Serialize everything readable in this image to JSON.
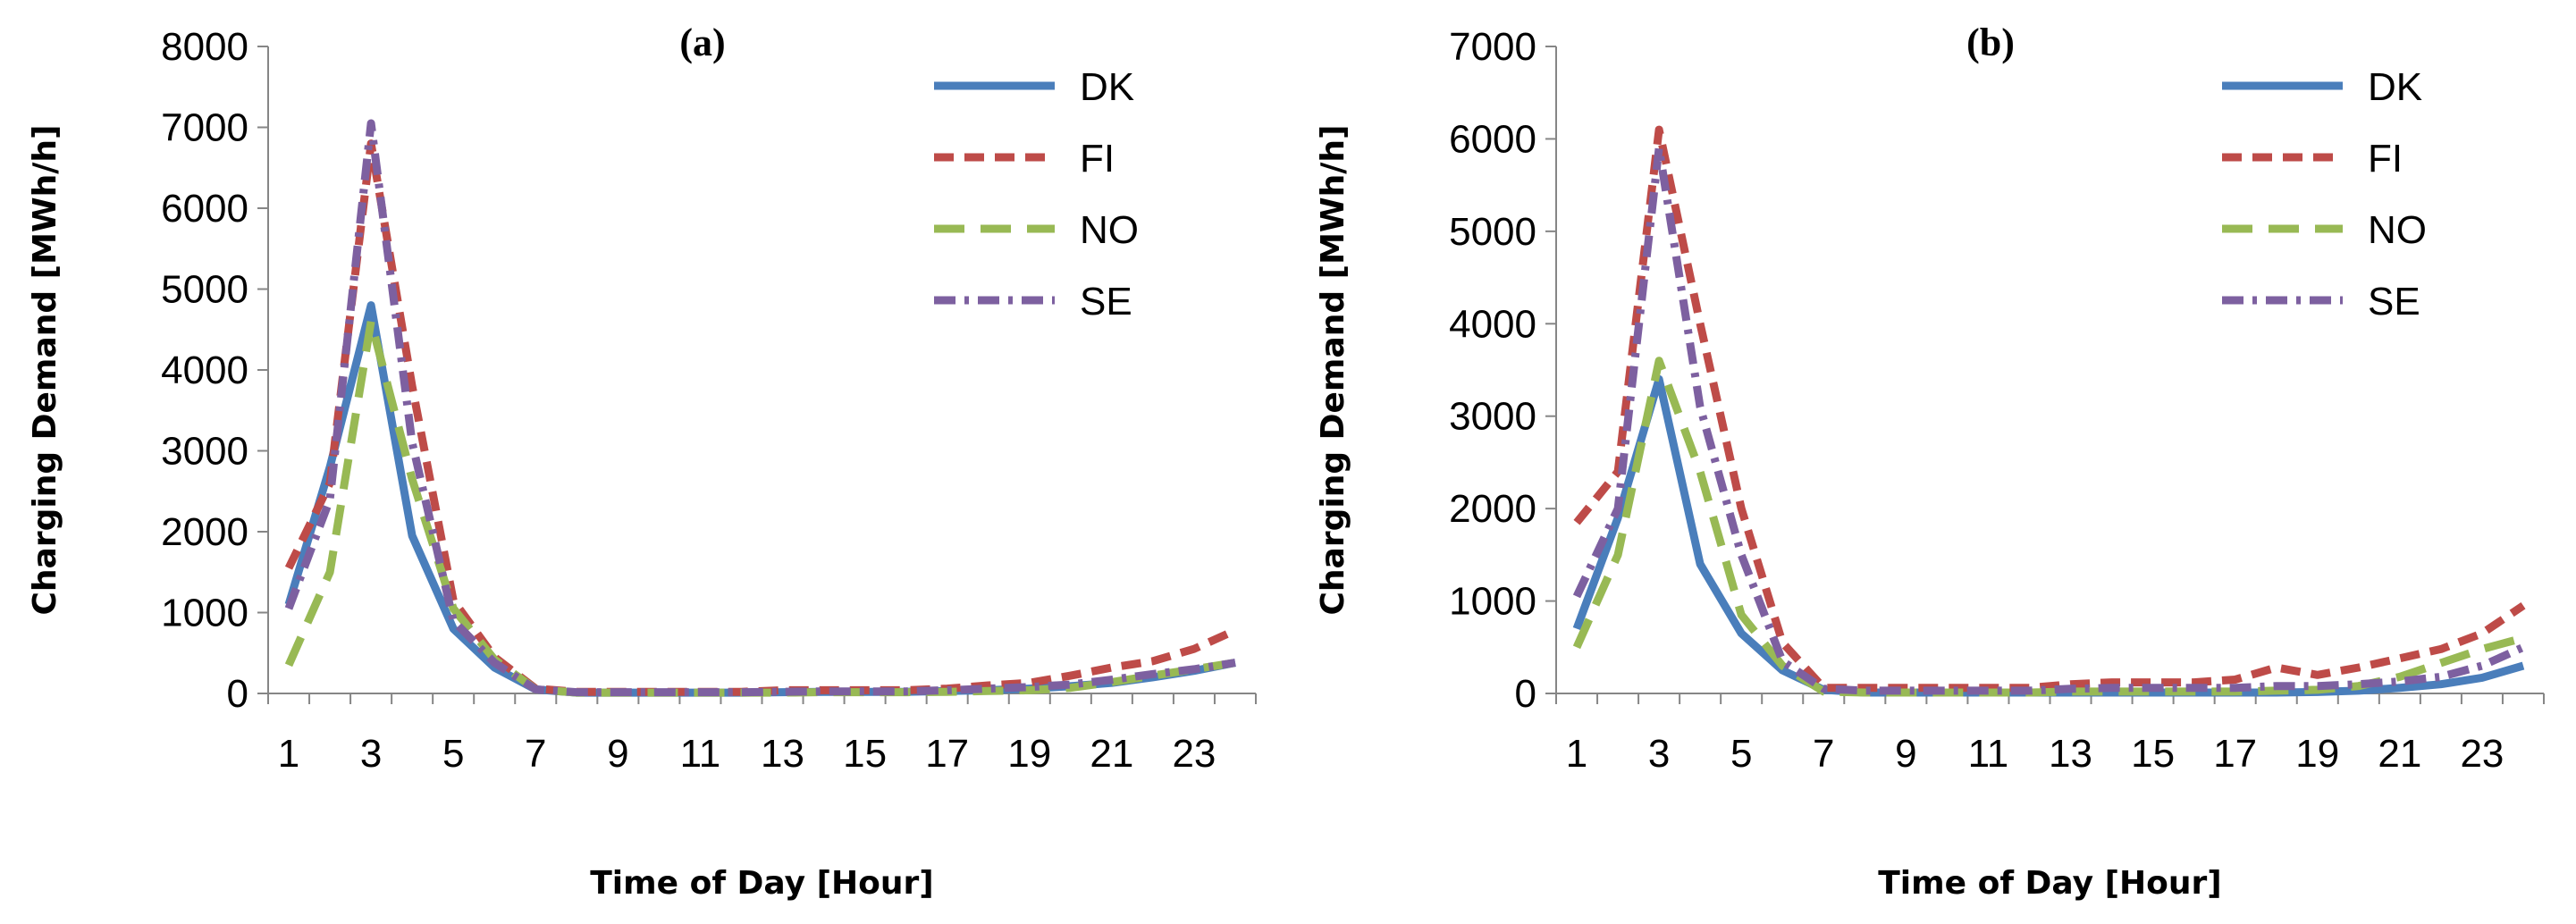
{
  "chart_data": [
    {
      "type": "line",
      "title": "(a)",
      "xlabel": "Time of Day [Hour]",
      "ylabel": "Charging Demand [MWh/h]",
      "ylim": [
        0,
        8000
      ],
      "yticks": [
        0,
        1000,
        2000,
        3000,
        4000,
        5000,
        6000,
        7000,
        8000
      ],
      "ytick_labels": [
        "0",
        "1000",
        "2000",
        "3000",
        "4000",
        "5000",
        "6000",
        "7000",
        "8000"
      ],
      "xlim": [
        1,
        24
      ],
      "xtick_labels": [
        "1",
        "3",
        "5",
        "7",
        "9",
        "11",
        "13",
        "15",
        "17",
        "19",
        "21",
        "23"
      ],
      "x": [
        1,
        2,
        3,
        4,
        5,
        6,
        7,
        8,
        9,
        10,
        11,
        12,
        13,
        14,
        15,
        16,
        17,
        18,
        19,
        20,
        21,
        22,
        23,
        24
      ],
      "legend_position": "top-right",
      "series": [
        {
          "name": "DK",
          "color": "#4a7ebb",
          "dash": "solid",
          "values": [
            1100,
            2800,
            4800,
            1950,
            800,
            320,
            50,
            10,
            10,
            10,
            10,
            10,
            15,
            20,
            20,
            20,
            30,
            40,
            60,
            90,
            130,
            200,
            280,
            380
          ]
        },
        {
          "name": "FI",
          "color": "#be4b48",
          "dash": "dash",
          "values": [
            1550,
            2600,
            6800,
            3800,
            1150,
            450,
            60,
            20,
            20,
            20,
            20,
            20,
            40,
            40,
            40,
            40,
            60,
            100,
            130,
            220,
            320,
            400,
            550,
            780
          ]
        },
        {
          "name": "NO",
          "color": "#98b954",
          "dash": "longdash",
          "values": [
            350,
            1500,
            4600,
            2650,
            1050,
            420,
            50,
            10,
            10,
            10,
            10,
            10,
            10,
            15,
            15,
            15,
            20,
            30,
            40,
            70,
            140,
            220,
            300,
            380
          ]
        },
        {
          "name": "SE",
          "color": "#7d60a0",
          "dash": "dashdot",
          "values": [
            1050,
            2400,
            7050,
            3100,
            900,
            380,
            50,
            15,
            15,
            15,
            15,
            15,
            20,
            25,
            25,
            25,
            40,
            60,
            80,
            110,
            170,
            240,
            300,
            380
          ]
        }
      ]
    },
    {
      "type": "line",
      "title": "(b)",
      "xlabel": "Time of Day [Hour]",
      "ylabel": "Charging Demand [MWh/h]",
      "ylim": [
        0,
        7000
      ],
      "yticks": [
        0,
        1000,
        2000,
        3000,
        4000,
        5000,
        6000,
        7000
      ],
      "ytick_labels": [
        "0",
        "1000",
        "2000",
        "3000",
        "4000",
        "5000",
        "6000",
        "7000"
      ],
      "xlim": [
        1,
        24
      ],
      "xtick_labels": [
        "1",
        "3",
        "5",
        "7",
        "9",
        "11",
        "13",
        "15",
        "17",
        "19",
        "21",
        "23"
      ],
      "x": [
        1,
        2,
        3,
        4,
        5,
        6,
        7,
        8,
        9,
        10,
        11,
        12,
        13,
        14,
        15,
        16,
        17,
        18,
        19,
        20,
        21,
        22,
        23,
        24
      ],
      "legend_position": "top-right",
      "series": [
        {
          "name": "DK",
          "color": "#4a7ebb",
          "dash": "solid",
          "values": [
            700,
            1900,
            3400,
            1400,
            650,
            250,
            40,
            10,
            10,
            10,
            10,
            10,
            10,
            10,
            10,
            10,
            10,
            10,
            15,
            30,
            60,
            100,
            170,
            300
          ]
        },
        {
          "name": "FI",
          "color": "#be4b48",
          "dash": "dash",
          "values": [
            1850,
            2400,
            6100,
            4000,
            2000,
            550,
            60,
            60,
            60,
            60,
            60,
            60,
            100,
            120,
            120,
            120,
            150,
            280,
            200,
            280,
            380,
            480,
            650,
            950
          ]
        },
        {
          "name": "NO",
          "color": "#98b954",
          "dash": "longdash",
          "values": [
            500,
            1500,
            3600,
            2400,
            850,
            300,
            20,
            10,
            10,
            10,
            10,
            10,
            20,
            20,
            20,
            20,
            20,
            30,
            40,
            80,
            180,
            330,
            480,
            600
          ]
        },
        {
          "name": "SE",
          "color": "#7d60a0",
          "dash": "dashdot",
          "values": [
            1050,
            2000,
            5900,
            3100,
            1500,
            350,
            50,
            30,
            30,
            30,
            30,
            30,
            50,
            60,
            60,
            60,
            60,
            80,
            80,
            100,
            130,
            180,
            300,
            500
          ]
        }
      ]
    }
  ]
}
